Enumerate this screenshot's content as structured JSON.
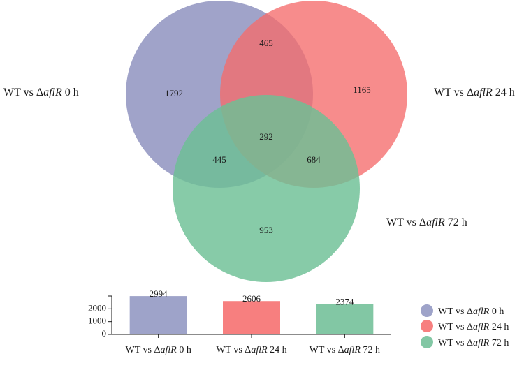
{
  "venn": {
    "sets": [
      {
        "label": "WT vs ΔaflR 0 h",
        "gene": "aflR",
        "prefix": "WT vs Δ",
        "suffix": " 0 h",
        "color": "#8b8fbd"
      },
      {
        "label": "WT vs ΔaflR 24 h",
        "gene": "aflR",
        "prefix": "WT vs Δ",
        "suffix": " 24 h",
        "color": "#f56b6b"
      },
      {
        "label": "WT vs ΔaflR 72 h",
        "gene": "aflR",
        "prefix": "WT vs Δ",
        "suffix": " 72 h",
        "color": "#6cbf95"
      }
    ],
    "regions": {
      "only_0h": "1792",
      "only_24h": "1165",
      "only_72h": "953",
      "0h_24h": "465",
      "0h_72h": "445",
      "24h_72h": "684",
      "all": "292"
    }
  },
  "chart_data": {
    "type": "bar",
    "categories": [
      "WT vs ΔaflR 0 h",
      "WT vs ΔaflR 24 h",
      "WT vs ΔaflR 72 h"
    ],
    "values": [
      2994,
      2606,
      2374
    ],
    "colors": [
      "#9ea3c9",
      "#f77f7f",
      "#82c7a4"
    ],
    "yticks": [
      0,
      1000,
      2000
    ],
    "ylim": [
      0,
      3000
    ],
    "xlabel": "",
    "ylabel": "",
    "legend_placement": "right",
    "grid": false
  }
}
